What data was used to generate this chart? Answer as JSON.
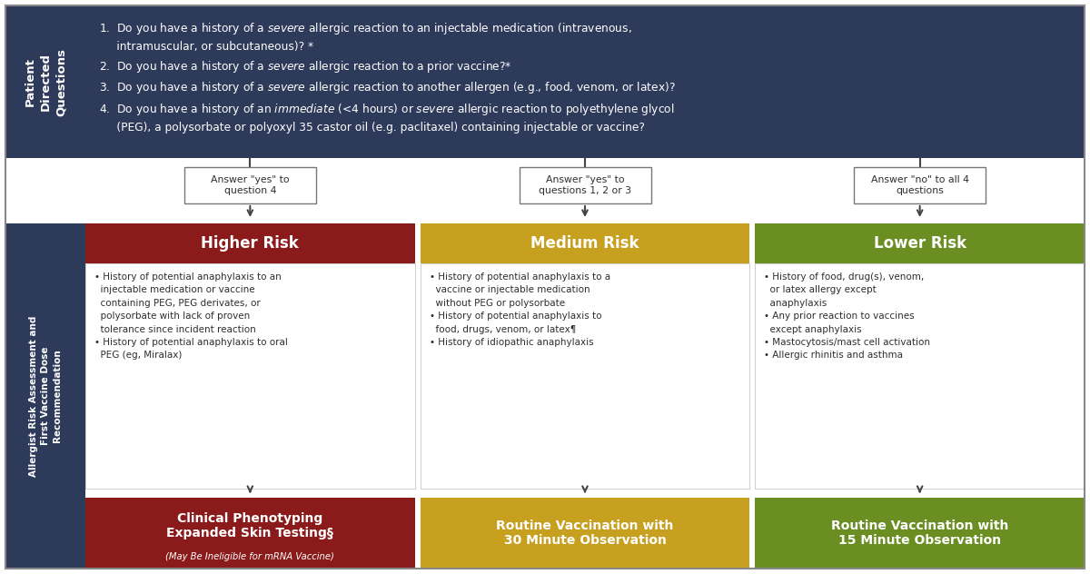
{
  "colors": {
    "dark_blue": "#2E3A59",
    "red": "#8B1A1A",
    "yellow": "#C8A020",
    "green": "#6B8E23",
    "white": "#FFFFFF",
    "text_dark": "#2E2E2E",
    "border": "#888888"
  },
  "question_header": "Patient\nDirected\nQuestions",
  "allergist_header": "Allergist Risk Assessment and\nFirst Vaccine Dose\nRecommendation",
  "arrow_labels": [
    "Answer \"yes\" to\nquestion 4",
    "Answer \"yes\" to\nquestions 1, 2 or 3",
    "Answer \"no\" to all 4\nquestions"
  ],
  "risk_titles": [
    "Higher Risk",
    "Medium Risk",
    "Lower Risk"
  ],
  "risk_bullets": [
    "• History of potential anaphylaxis to an\n  injectable medication or vaccine\n  containing PEG, PEG derivates, or\n  polysorbate with lack of proven\n  tolerance since incident reaction\n• History of potential anaphylaxis to oral\n  PEG (eg, Miralax)",
    "• History of potential anaphylaxis to a\n  vaccine or injectable medication\n  without PEG or polysorbate\n• History of potential anaphylaxis to\n  food, drugs, venom, or latex¶\n• History of idiopathic anaphylaxis",
    "• History of food, drug(s), venom,\n  or latex allergy except\n  anaphylaxis\n• Any prior reaction to vaccines\n  except anaphylaxis\n• Mastocytosis/mast cell activation\n• Allergic rhinitis and asthma"
  ],
  "outcome_titles": [
    "Clinical Phenotyping\nExpanded Skin Testing§",
    "Routine Vaccination with\n30 Minute Observation",
    "Routine Vaccination with\n15 Minute Observation"
  ],
  "outcome_subtitles": [
    "(May Be Ineligible for mRNA Vaccine)",
    "",
    ""
  ]
}
